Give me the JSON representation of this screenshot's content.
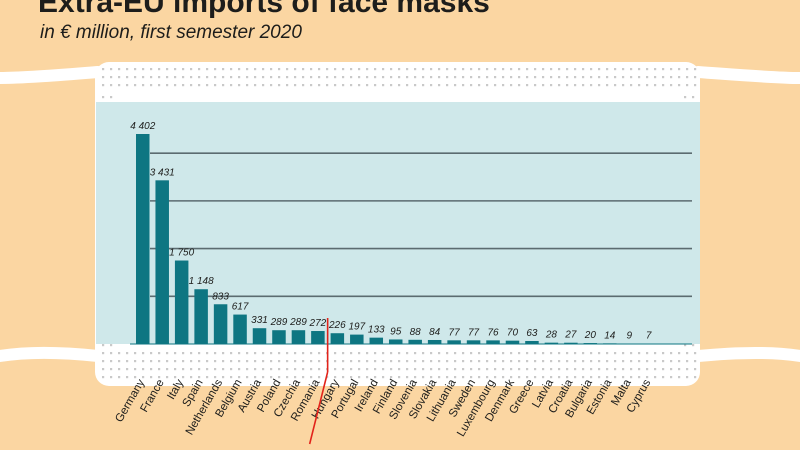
{
  "header": {
    "title": "Extra-EU imports of face masks",
    "subtitle": "in € million, first semester 2020"
  },
  "colors": {
    "background": "#fbd6a2",
    "plot_area": "#cfe8ea",
    "bar": "#0e7682",
    "gridline": "#5b6b70",
    "highlight_line": "#e2231a"
  },
  "chart_data": {
    "type": "bar",
    "title": "Extra-EU imports of face masks",
    "subtitle": "in € million, first semester 2020",
    "categories": [
      "Germany",
      "France",
      "Italy",
      "Spain",
      "Netherlands",
      "Belgium",
      "Austria",
      "Poland",
      "Czechia",
      "Romania",
      "Hungary",
      "Portugal",
      "Ireland",
      "Finland",
      "Slovenia",
      "Slovakia",
      "Lithuania",
      "Sweden",
      "Luxembourg",
      "Denmark",
      "Greece",
      "Latvia",
      "Croatia",
      "Bulgaria",
      "Estonia",
      "Malta",
      "Cyprus"
    ],
    "values": [
      4402,
      3431,
      1750,
      1148,
      833,
      617,
      331,
      289,
      289,
      272,
      226,
      197,
      133,
      95,
      88,
      84,
      77,
      77,
      76,
      70,
      63,
      28,
      27,
      20,
      14,
      9,
      7
    ],
    "value_labels": [
      "4 402",
      "3 431",
      "1 750",
      "1 148",
      "833",
      "617",
      "331",
      "289",
      "289",
      "272",
      "226",
      "197",
      "133",
      "95",
      "88",
      "84",
      "77",
      "77",
      "76",
      "70",
      "63",
      "28",
      "27",
      "20",
      "14",
      "9",
      "7"
    ],
    "ylim": [
      0,
      4500
    ],
    "gridlines": [
      1000,
      2000,
      3000,
      4000
    ],
    "grid": true,
    "legend": "none",
    "highlight_after": "Romania"
  }
}
